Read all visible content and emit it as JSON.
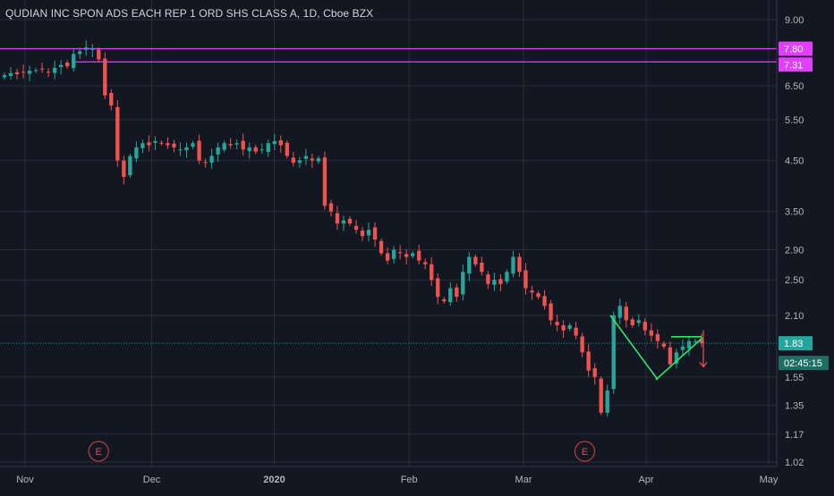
{
  "header": {
    "title": "QUDIAN INC SPON ADS EACH REP 1 ORD SHS CLASS A, 1D, Cboe BZX"
  },
  "colors": {
    "background": "#131722",
    "grid": "#2a2e39",
    "up": "#26a69a",
    "down": "#ef5350",
    "resistance_line": "#e040fb",
    "current_price": "#26a69a",
    "trend_lines": "#2ee86c",
    "axis_text": "#b2b5be"
  },
  "axes": {
    "y_ticks": [
      "9.00",
      "7.80",
      "7.31",
      "6.50",
      "5.50",
      "4.50",
      "3.50",
      "2.90",
      "2.50",
      "2.10",
      "1.83",
      "1.55",
      "1.35",
      "1.17",
      "1.02"
    ],
    "x_ticks": [
      "Nov",
      "Dec",
      "2020",
      "Feb",
      "Mar",
      "Apr",
      "May"
    ],
    "scale": "log"
  },
  "price_labels": {
    "resistance_1": "7.80",
    "resistance_2": "7.31",
    "current": "1.83",
    "countdown": "02:45:15"
  },
  "events": [
    {
      "label": "E",
      "date": "2019-11-19"
    },
    {
      "label": "E",
      "date": "2020-03-17"
    }
  ],
  "chart_data": {
    "type": "candlestick",
    "title": "QUDIAN INC SPON ADS EACH REP 1 ORD SHS CLASS A, 1D, Cboe BZX",
    "x_start": "2019-10-25",
    "x_end": "2020-05-01",
    "ylim": [
      1.0,
      10.0
    ],
    "y_scale": "log",
    "grid": true,
    "horizontal_lines": [
      7.8,
      7.31
    ],
    "last_price": 1.83,
    "closes": [
      6.85,
      6.92,
      6.88,
      6.95,
      7.0,
      7.02,
      7.05,
      6.95,
      7.1,
      7.2,
      7.15,
      7.6,
      7.7,
      7.85,
      7.8,
      7.4,
      6.2,
      5.9,
      4.5,
      4.15,
      4.6,
      4.8,
      4.9,
      4.85,
      4.95,
      4.9,
      4.85,
      4.8,
      4.75,
      4.8,
      4.9,
      4.5,
      4.45,
      4.6,
      4.8,
      4.9,
      4.85,
      4.9,
      4.75,
      4.8,
      4.7,
      4.75,
      4.9,
      4.95,
      4.85,
      4.6,
      4.45,
      4.5,
      4.6,
      4.5,
      4.55,
      3.6,
      3.5,
      3.3,
      3.35,
      3.3,
      3.2,
      3.1,
      3.2,
      3.05,
      2.85,
      2.75,
      2.9,
      2.85,
      2.8,
      2.85,
      2.75,
      2.7,
      2.5,
      2.3,
      2.25,
      2.4,
      2.3,
      2.6,
      2.8,
      2.7,
      2.6,
      2.45,
      2.5,
      2.45,
      2.6,
      2.8,
      2.6,
      2.4,
      2.35,
      2.3,
      2.2,
      2.05,
      2.0,
      1.95,
      2.0,
      1.9,
      1.75,
      1.6,
      1.55,
      1.3,
      1.45,
      2.1,
      2.2,
      2.05,
      2.0,
      2.05,
      1.95,
      1.9,
      1.85,
      1.8,
      1.65,
      1.75,
      1.8,
      1.85,
      1.85,
      1.83
    ]
  }
}
